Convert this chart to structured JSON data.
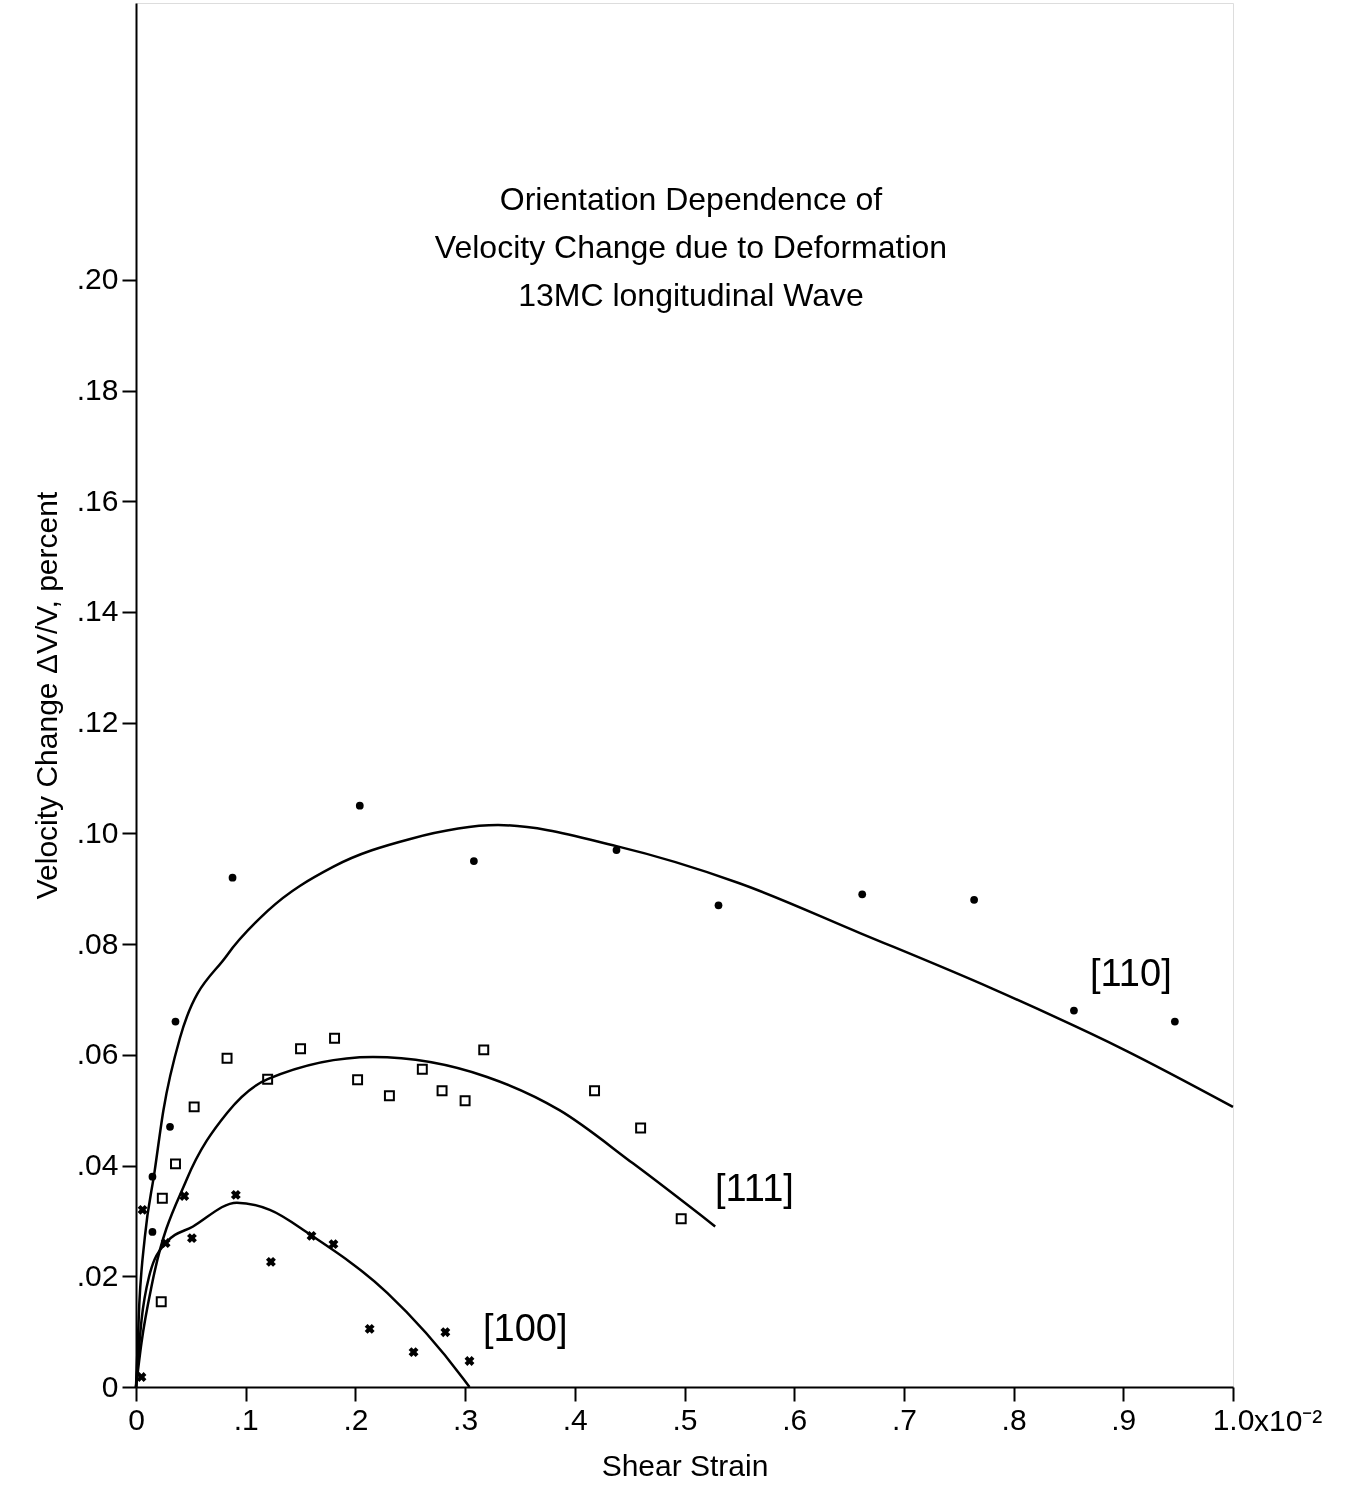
{
  "chart_data": {
    "type": "scatter",
    "title": "Orientation Dependence of\nVelocity Change due to Deformation\n13MC longitudinal Wave",
    "xlabel": "Shear Strain",
    "ylabel": "Velocity Change  ΔV/V,  percent",
    "xlim": [
      0,
      1.0
    ],
    "ylim": [
      0,
      0.25
    ],
    "xticks": [
      0,
      {
        "value": 0.1,
        "label": ".1"
      },
      {
        "value": 0.2,
        "label": ".2"
      },
      {
        "value": 0.3,
        "label": ".3"
      },
      {
        "value": 0.4,
        "label": ".4"
      },
      {
        "value": 0.5,
        "label": ".5"
      },
      {
        "value": 0.6,
        "label": ".6"
      },
      {
        "value": 0.7,
        "label": ".7"
      },
      {
        "value": 0.8,
        "label": ".8"
      },
      {
        "value": 0.9,
        "label": ".9"
      },
      {
        "value": 1.0,
        "label": "1.0"
      }
    ],
    "yticks": [
      0,
      {
        "value": 0.02,
        "label": ".02"
      },
      {
        "value": 0.04,
        "label": ".04"
      },
      {
        "value": 0.06,
        "label": ".06"
      },
      {
        "value": 0.08,
        "label": ".08"
      },
      {
        "value": 0.1,
        "label": ".10"
      },
      {
        "value": 0.12,
        "label": ".12"
      },
      {
        "value": 0.14,
        "label": ".14"
      },
      {
        "value": 0.16,
        "label": ".16"
      },
      {
        "value": 0.18,
        "label": ".18"
      },
      {
        "value": 0.2,
        "label": ".20"
      }
    ],
    "grid": false,
    "series": [
      {
        "marker": "circle",
        "color": "#000000",
        "x": [
          0.015,
          0.015,
          0.031,
          0.036,
          0.088,
          0.204,
          0.308,
          0.438,
          0.531,
          0.662,
          0.764,
          0.855,
          0.947
        ],
        "values": [
          0.028,
          0.038,
          0.047,
          0.066,
          0.092,
          0.105,
          0.095,
          0.097,
          0.087,
          0.089,
          0.088,
          0.068,
          0.066
        ]
      },
      {
        "marker": "square",
        "color": "#000000",
        "x": [
          0.023,
          0.024,
          0.036,
          0.053,
          0.083,
          0.12,
          0.15,
          0.181,
          0.202,
          0.231,
          0.261,
          0.279,
          0.3,
          0.317,
          0.418,
          0.46,
          0.497
        ],
        "values": [
          0.0154,
          0.0341,
          0.0403,
          0.0506,
          0.0594,
          0.0556,
          0.0611,
          0.063,
          0.0555,
          0.0526,
          0.0574,
          0.0535,
          0.0517,
          0.0609,
          0.0535,
          0.0468,
          0.0304
        ]
      },
      {
        "marker": "cross",
        "color": "#000000",
        "x": [
          0.005,
          0.006,
          0.027,
          0.044,
          0.051,
          0.091,
          0.123,
          0.16,
          0.18,
          0.213,
          0.253,
          0.282,
          0.304
        ],
        "values": [
          0.0018,
          0.032,
          0.026,
          0.0345,
          0.0269,
          0.0347,
          0.0226,
          0.0273,
          0.0258,
          0.0105,
          0.0063,
          0.0099,
          0.0047
        ]
      },
      {
        "type": "line",
        "marker": "none",
        "line_style": "solid",
        "color": "#000000",
        "x": [
          0,
          0.003,
          0.008,
          0.017,
          0.025,
          0.04,
          0.083,
          0.12,
          0.18,
          0.25,
          0.33,
          0.438,
          0.55,
          0.66,
          0.78,
          0.9,
          1.0
        ],
        "values": [
          0,
          0.015,
          0.027,
          0.039,
          0.05,
          0.063,
          0.078,
          0.086,
          0.094,
          0.099,
          0.1015,
          0.0977,
          0.091,
          0.082,
          0.072,
          0.061,
          0.0506
        ]
      },
      {
        "type": "line",
        "marker": "none",
        "line_style": "solid",
        "color": "#000000",
        "x": [
          0,
          0.005,
          0.015,
          0.046,
          0.083,
          0.12,
          0.216,
          0.32,
          0.386,
          0.453,
          0.528
        ],
        "values": [
          0,
          0.008,
          0.019,
          0.0374,
          0.0495,
          0.0556,
          0.0596,
          0.056,
          0.05,
          0.0404,
          0.029
        ]
      },
      {
        "type": "line",
        "marker": "none",
        "line_style": "solid",
        "color": "#000000",
        "x": [
          0,
          0.005,
          0.012,
          0.027,
          0.052,
          0.092,
          0.122,
          0.159,
          0.229,
          0.298,
          0.304
        ],
        "values": [
          0,
          0.012,
          0.02,
          0.026,
          0.029,
          0.0333,
          0.032,
          0.0275,
          0.017,
          0.0016,
          0
        ]
      }
    ],
    "annotations": [
      "[110]",
      "[111]",
      "[100]",
      "x10⁻²"
    ]
  }
}
